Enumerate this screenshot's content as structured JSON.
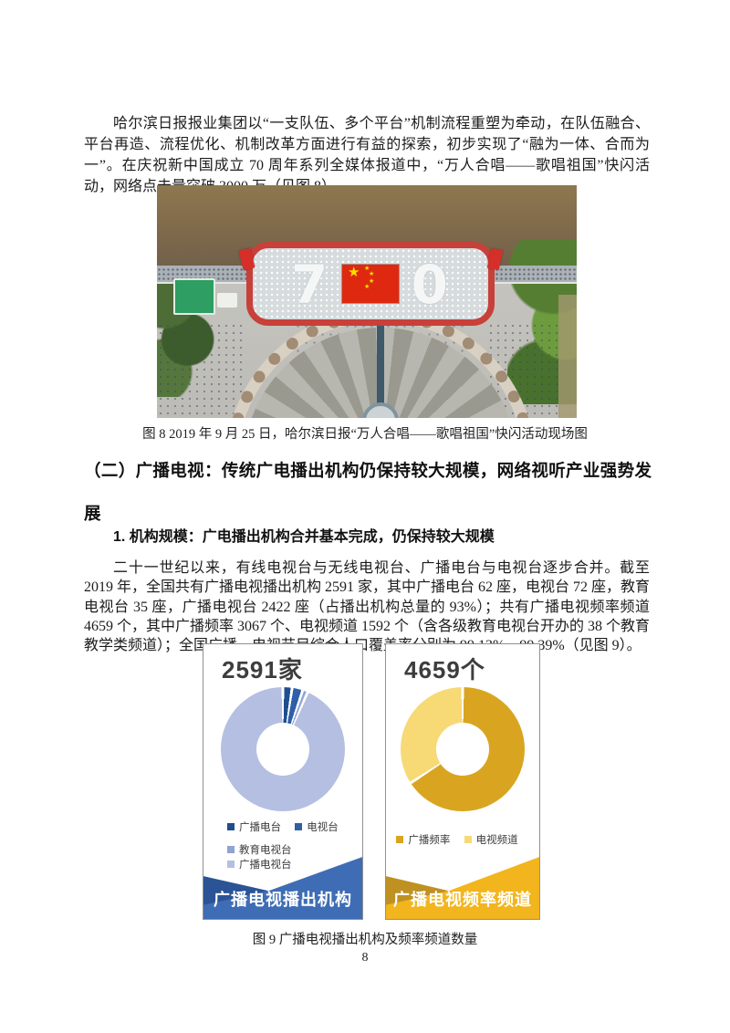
{
  "page": {
    "number": "8"
  },
  "intro_paragraph": "哈尔滨日报报业集团以“一支队伍、多个平台”机制流程重塑为牵动，在队伍融合、平台再造、流程优化、机制改革方面进行有益的探索，初步实现了“融为一体、合而为一”。在庆祝新中国成立 70 周年系列全媒体报道中，“万人合唱——歌唱祖国”快闪活动，网络点击量突破 3000 万（见图 8）。",
  "figure8": {
    "caption": "图 8  2019 年 9 月 25 日，哈尔滨日报“万人合唱——歌唱祖国”快闪活动现场图",
    "photo": {
      "formation_digit_left": "7",
      "formation_digit_right": "0",
      "flag_star": "★"
    }
  },
  "section_heading": "（二）广播电视：传统广电播出机构仍保持较大规模，网络视听产业强势发展",
  "sub_heading": "1. 机构规模：广电播出机构合并基本完成，仍保持较大规模",
  "body_paragraph": "二十一世纪以来，有线电视台与无线电视台、广播电台与电视台逐步合并。截至 2019 年，全国共有广播电视播出机构 2591 家，其中广播电台 62 座，电视台 72 座，教育电视台 35 座，广播电视台 2422 座（占播出机构总量的 93%）；共有广播电视频率频道 4659 个，其中广播频率 3067 个、电视频道 1592 个（含各级教育电视台开办的 38 个教育教学类频道）；全国广播、电视节目综合人口覆盖率分别为 99.13%、99.39%（见图 9）。",
  "figure9": {
    "caption": "图 9  广播电视播出机构及频率频道数量"
  },
  "chart_data": [
    {
      "type": "pie",
      "subtype": "donut",
      "title": "2591家",
      "total": 2591,
      "unit": "家",
      "legend_position": "bottom",
      "start_angle_deg": 0,
      "series": [
        {
          "name": "广播电台",
          "value": 62,
          "color": "#1F4E8C"
        },
        {
          "name": "电视台",
          "value": 72,
          "color": "#2E5FA8"
        },
        {
          "name": "教育电视台",
          "value": 35,
          "color": "#8FA3D4"
        },
        {
          "name": "广播电视台",
          "value": 2422,
          "color": "#B4BFE2"
        }
      ],
      "banner": {
        "label": "广播电视播出机构",
        "color": "#3E6DB5",
        "dark_color": "#2B5496"
      }
    },
    {
      "type": "pie",
      "subtype": "donut",
      "title": "4659个",
      "total": 4659,
      "unit": "个",
      "legend_position": "bottom",
      "start_angle_deg": 0,
      "series": [
        {
          "name": "广播频率",
          "value": 3067,
          "color": "#D9A521"
        },
        {
          "name": "电视频道",
          "value": 1592,
          "color": "#F7D975"
        }
      ],
      "banner": {
        "label": "广播电视频率频道",
        "color": "#F2B51D",
        "dark_color": "#BE9122"
      }
    }
  ]
}
